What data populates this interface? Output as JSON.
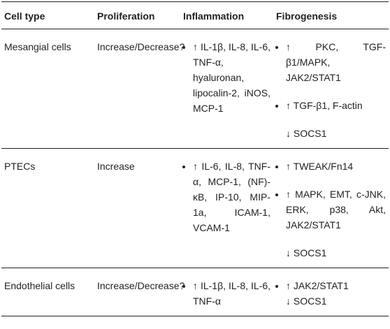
{
  "table": {
    "header": [
      "Cell type",
      "Proliferation",
      "Inflammation",
      "Fibrogenesis"
    ],
    "rows": [
      {
        "cell_type": "Mesangial cells",
        "proliferation": "Increase/Decrease?",
        "inflammation": [
          "↑ IL-1β, IL-8, IL-6, TNF-α, hyaluronan, lipocalin-2, iNOS, MCP-1"
        ],
        "fibrogenesis": {
          "items": [
            "↑ PKC, TGF-β1/MAPK, JAK2/STAT1",
            "↑ TGF-β1, F-actin"
          ],
          "after": "↓ SOCS1"
        }
      },
      {
        "cell_type": "PTECs",
        "proliferation": "Increase",
        "inflammation": [
          "↑ IL-6, IL-8, TNF-α, MCP-1, (NF)-κB, IP-10, MIP-1a, ICAM-1, VCAM-1"
        ],
        "fibrogenesis": {
          "items": [
            "↑ TWEAK/Fn14",
            "↑ MAPK, EMT, c-JNK, ERK, p38, Akt, JAK2/STAT1"
          ],
          "after": "↓ SOCS1"
        }
      },
      {
        "cell_type": "Endothelial cells",
        "proliferation": "Increase/Decrease?",
        "inflammation": [
          "↑ IL-1β, IL-8, IL-6, TNF-α"
        ],
        "fibrogenesis": {
          "items": [
            "↑ JAK2/STAT1"
          ],
          "after": "↓ SOCS1"
        }
      }
    ]
  }
}
